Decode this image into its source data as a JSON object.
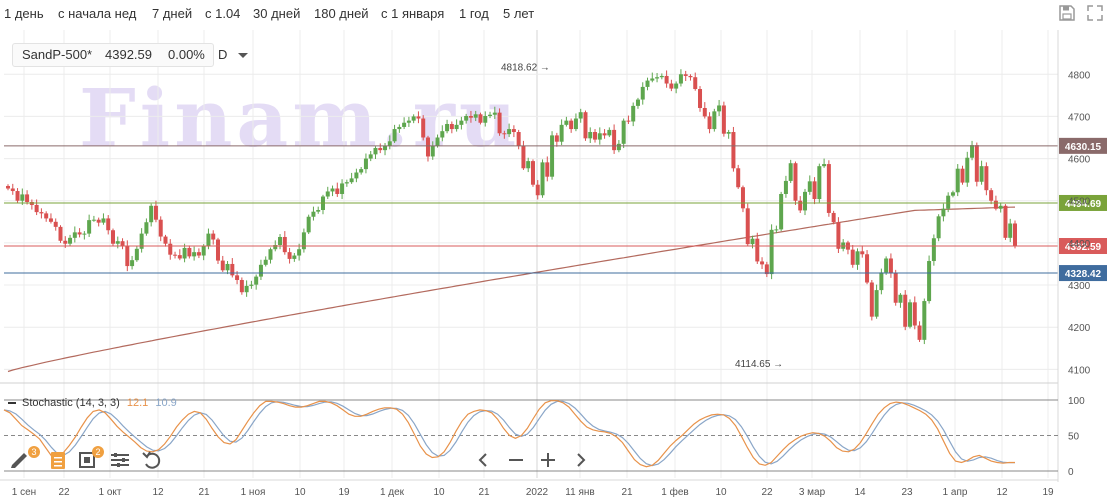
{
  "toolbar": {
    "periods": [
      "1 день",
      "с начала нед",
      "7 дней",
      "с 1.04",
      "30 дней",
      "180 дней",
      "с 1 января",
      "1 год",
      "5 лет"
    ]
  },
  "icons": {
    "save": "floppy-disk-icon",
    "expand": "expand-icon",
    "draw": "pencil-icon",
    "templates": "document-icon",
    "add_indicator": "add-indicator-icon",
    "settings": "sliders-icon",
    "undo": "undo-icon",
    "scroll_left": "chevron-left-icon",
    "zoom_out": "minus-icon",
    "zoom_in": "plus-icon",
    "scroll_right": "chevron-right-icon"
  },
  "badges": {
    "draw": "3",
    "add_indicator": "2"
  },
  "instrument": {
    "name": "SandP-500*",
    "price": "4392.59",
    "change": "0.00%",
    "interval": "D"
  },
  "watermark": "Finam.ru",
  "chart_data": {
    "type": "candlestick",
    "y_axis": {
      "ticks": [
        4100,
        4200,
        4300,
        4400,
        4500,
        4600,
        4700,
        4800
      ],
      "range": [
        4070,
        4905
      ]
    },
    "x_axis": {
      "labels": [
        "1 сен",
        "22",
        "1 окт",
        "12",
        "21",
        "1 ноя",
        "10",
        "19",
        "1 дек",
        "10",
        "21",
        "2022",
        "11 янв",
        "21",
        "1 фев",
        "10",
        "22",
        "3 мар",
        "14",
        "23",
        "1 апр",
        "12",
        "19"
      ]
    },
    "price_lines": [
      {
        "value": 4630.15,
        "label": "4630.15",
        "color": "#8a6a6a"
      },
      {
        "value": 4494.69,
        "label": "4494.69",
        "color": "#7aa33a"
      },
      {
        "value": 4392.59,
        "label": "4392.59",
        "color": "#d95b5b"
      },
      {
        "value": 4328.42,
        "label": "4328.42",
        "color": "#3f6c9e"
      }
    ],
    "annotations": [
      {
        "text": "4818.62",
        "value": 4818.62
      },
      {
        "text": "4114.65",
        "value": 4114.65
      }
    ],
    "closes": [
      4529,
      4523,
      4500,
      4515,
      4497,
      4490,
      4473,
      4470,
      4458,
      4450,
      4438,
      4405,
      4398,
      4412,
      4425,
      4420,
      4422,
      4454,
      4455,
      4448,
      4458,
      4430,
      4398,
      4404,
      4392,
      4345,
      4359,
      4386,
      4422,
      4449,
      4488,
      4455,
      4415,
      4398,
      4372,
      4371,
      4363,
      4388,
      4368,
      4378,
      4370,
      4392,
      4422,
      4408,
      4358,
      4335,
      4350,
      4323,
      4312,
      4283,
      4298,
      4301,
      4320,
      4348,
      4360,
      4385,
      4395,
      4414,
      4378,
      4362,
      4370,
      4385,
      4425,
      4462,
      4474,
      4478,
      4510,
      4522,
      4529,
      4516,
      4541,
      4544,
      4553,
      4567,
      4575,
      4600,
      4610,
      4625,
      4620,
      4630,
      4641,
      4670,
      4675,
      4685,
      4690,
      4700,
      4695,
      4650,
      4605,
      4630,
      4650,
      4665,
      4682,
      4670,
      4680,
      4690,
      4701,
      4697,
      4705,
      4685,
      4701,
      4704,
      4709,
      4660,
      4658,
      4670,
      4663,
      4630,
      4577,
      4594,
      4538,
      4513,
      4591,
      4557,
      4655,
      4640,
      4680,
      4690,
      4670,
      4695,
      4710,
      4648,
      4663,
      4645,
      4660,
      4655,
      4668,
      4620,
      4635,
      4690,
      4688,
      4725,
      4740,
      4770,
      4785,
      4790,
      4793,
      4796,
      4778,
      4766,
      4778,
      4800,
      4796,
      4793,
      4765,
      4720,
      4700,
      4670,
      4712,
      4726,
      4659,
      4663,
      4577,
      4532,
      4482,
      4397,
      4410,
      4356,
      4349,
      4326,
      4431,
      4432,
      4516,
      4547,
      4589,
      4500,
      4477,
      4521,
      4546,
      4504,
      4582,
      4587,
      4471,
      4449,
      4386,
      4401,
      4384,
      4348,
      4380,
      4373,
      4306,
      4225,
      4288,
      4330,
      4363,
      4328,
      4258,
      4277,
      4201,
      4259,
      4204,
      4170,
      4262,
      4357,
      4411,
      4463,
      4481,
      4512,
      4520,
      4576,
      4543,
      4602,
      4632,
      4545,
      4582,
      4525,
      4500,
      4481,
      4488,
      4412,
      4446,
      4393
    ]
  },
  "stochastic": {
    "title": "Stochastic (14, 3, 3)",
    "k": "12.1",
    "d": "10.9",
    "levels": [
      "100",
      "50",
      "0"
    ],
    "k_series": [
      86,
      82,
      73,
      64,
      58,
      52,
      45,
      33,
      21,
      19,
      26,
      36,
      48,
      62,
      75,
      84,
      86,
      82,
      73,
      63,
      55,
      48,
      41,
      33,
      28,
      27,
      30,
      38,
      49,
      62,
      72,
      80,
      84,
      82,
      73,
      60,
      48,
      40,
      38,
      44,
      57,
      70,
      82,
      92,
      98,
      98,
      97,
      95,
      92,
      90,
      90,
      92,
      95,
      98,
      98,
      96,
      92,
      86,
      80,
      77,
      77,
      80,
      84,
      87,
      89,
      89,
      87,
      80,
      68,
      52,
      35,
      24,
      19,
      20,
      27,
      40,
      56,
      70,
      80,
      84,
      86,
      85,
      82,
      73,
      60,
      50,
      46,
      50,
      60,
      74,
      87,
      96,
      99,
      99,
      96,
      90,
      80,
      70,
      62,
      58,
      56,
      55,
      53,
      48,
      40,
      28,
      16,
      9,
      6,
      8,
      15,
      25,
      35,
      43,
      50,
      58,
      66,
      72,
      76,
      79,
      80,
      79,
      74,
      64,
      49,
      33,
      19,
      10,
      8,
      12,
      21,
      30,
      38,
      44,
      49,
      52,
      54,
      53,
      49,
      42,
      33,
      28,
      27,
      31,
      40,
      53,
      67,
      80,
      89,
      95,
      97,
      96,
      93,
      89,
      85,
      80,
      72,
      59,
      42,
      25,
      14,
      12,
      15,
      20,
      22,
      18,
      14,
      12,
      11,
      12,
      12
    ]
  }
}
